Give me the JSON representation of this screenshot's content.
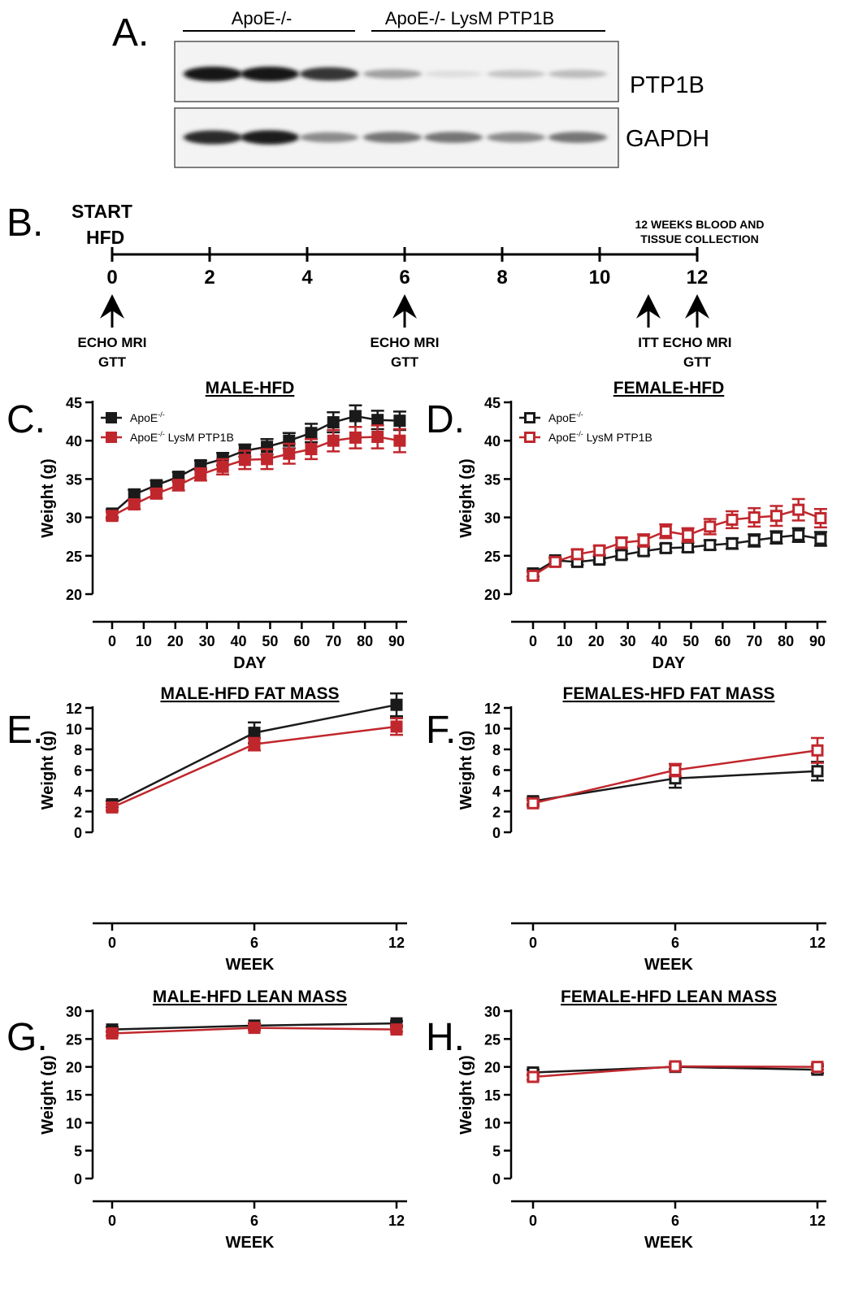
{
  "panels": {
    "a": "A.",
    "b": "B.",
    "c": "C.",
    "d": "D.",
    "e": "E.",
    "f": "F.",
    "g": "G.",
    "h": "H."
  },
  "blot": {
    "group1": "ApoE-/-",
    "group2": "ApoE-/- LysM PTP1B",
    "band1": "PTP1B",
    "band2": "GAPDH",
    "ptp1b_intensity": [
      1.0,
      1.0,
      0.85,
      0.35,
      0.06,
      0.18,
      0.22
    ],
    "gapdh_intensity": [
      0.9,
      0.95,
      0.45,
      0.55,
      0.55,
      0.45,
      0.55
    ]
  },
  "timeline": {
    "start_line1": "START",
    "start_line2": "HFD",
    "end_line1": "12 WEEKS BLOOD AND",
    "end_line2": "TISSUE COLLECTION",
    "ticks": [
      "0",
      "2",
      "4",
      "6",
      "8",
      "10",
      "12"
    ],
    "events": [
      {
        "week": 0,
        "line1": "ECHO MRI",
        "line2": "GTT"
      },
      {
        "week": 6,
        "line1": "ECHO MRI",
        "line2": "GTT"
      },
      {
        "week": 11,
        "line1": "ITT",
        "line2": ""
      },
      {
        "week": 12,
        "line1": "ECHO MRI",
        "line2": "GTT"
      }
    ]
  },
  "colors": {
    "apoe": "#1a1a1a",
    "ptp1b": "#c0272d"
  },
  "legend": {
    "apoe_base": "ApoE",
    "apoe_sup": "-/-",
    "ptp1b_base": "ApoE",
    "ptp1b_sup": "-/-",
    "ptp1b_tail": " LysM PTP1B"
  },
  "chart_data": [
    {
      "id": "c",
      "type": "line",
      "title": "MALE-HFD",
      "xlabel": "DAY",
      "ylabel": "Weight (g)",
      "ylim": [
        20,
        45
      ],
      "xlim": [
        0,
        90
      ],
      "yticks": [
        20,
        25,
        30,
        35,
        40,
        45
      ],
      "xticks": [
        0,
        10,
        20,
        30,
        40,
        50,
        60,
        70,
        80,
        90
      ],
      "filled": true,
      "legend": "top-left",
      "series": [
        {
          "name": "ApoE-/-",
          "color": "#1a1a1a",
          "x": [
            0,
            7,
            14,
            21,
            28,
            35,
            42,
            49,
            56,
            63,
            70,
            77,
            84,
            91
          ],
          "y": [
            30.5,
            33.0,
            34.2,
            35.3,
            36.8,
            37.6,
            38.7,
            39.2,
            40.0,
            41.0,
            42.4,
            43.2,
            42.7,
            42.6
          ],
          "err": [
            0.5,
            0.6,
            0.6,
            0.6,
            0.6,
            0.8,
            0.8,
            1.0,
            1.0,
            1.2,
            1.3,
            1.4,
            1.2,
            1.2
          ]
        },
        {
          "name": "ApoE-/- LysM PTP1B",
          "color": "#c0272d",
          "x": [
            0,
            7,
            14,
            21,
            28,
            35,
            42,
            49,
            56,
            63,
            70,
            77,
            84,
            91
          ],
          "y": [
            30.2,
            31.7,
            33.1,
            34.2,
            35.6,
            36.6,
            37.5,
            37.6,
            38.3,
            38.9,
            40.0,
            40.4,
            40.5,
            40.0
          ],
          "err": [
            0.5,
            0.6,
            0.6,
            0.7,
            0.8,
            1.0,
            1.2,
            1.3,
            1.3,
            1.3,
            1.4,
            1.4,
            1.5,
            1.5
          ]
        }
      ]
    },
    {
      "id": "d",
      "type": "line",
      "title": "FEMALE-HFD",
      "xlabel": "DAY",
      "ylabel": "Weight (g)",
      "ylim": [
        20,
        45
      ],
      "xlim": [
        0,
        90
      ],
      "yticks": [
        20,
        25,
        30,
        35,
        40,
        45
      ],
      "xticks": [
        0,
        10,
        20,
        30,
        40,
        50,
        60,
        70,
        80,
        90
      ],
      "filled": false,
      "legend": "top-left",
      "series": [
        {
          "name": "ApoE-/-",
          "color": "#1a1a1a",
          "x": [
            0,
            7,
            14,
            21,
            28,
            35,
            42,
            49,
            56,
            63,
            70,
            77,
            84,
            91
          ],
          "y": [
            22.7,
            24.4,
            24.2,
            24.5,
            25.1,
            25.6,
            26.0,
            26.1,
            26.4,
            26.6,
            27.0,
            27.4,
            27.7,
            27.2
          ],
          "err": [
            0.4,
            0.4,
            0.4,
            0.4,
            0.5,
            0.5,
            0.5,
            0.6,
            0.6,
            0.7,
            0.8,
            0.8,
            0.9,
            0.9
          ]
        },
        {
          "name": "ApoE-/- LysM PTP1B",
          "color": "#c0272d",
          "x": [
            0,
            7,
            14,
            21,
            28,
            35,
            42,
            49,
            56,
            63,
            70,
            77,
            84,
            91
          ],
          "y": [
            22.4,
            24.2,
            25.2,
            25.7,
            26.7,
            27.0,
            28.2,
            27.7,
            28.8,
            29.7,
            30.0,
            30.2,
            31.0,
            29.9
          ],
          "err": [
            0.5,
            0.5,
            0.6,
            0.6,
            0.7,
            0.8,
            0.9,
            0.9,
            1.0,
            1.1,
            1.2,
            1.3,
            1.4,
            1.2
          ]
        }
      ]
    },
    {
      "id": "e",
      "type": "line",
      "title": "MALE-HFD FAT MASS",
      "xlabel": "WEEK",
      "ylabel": "Weight (g)",
      "ylim": [
        0,
        13.5
      ],
      "xlim": [
        0,
        12
      ],
      "yticks": [
        0,
        2,
        4,
        6,
        8,
        10,
        12
      ],
      "xticks": [
        0,
        6,
        12
      ],
      "filled": true,
      "series": [
        {
          "name": "ApoE-/-",
          "color": "#1a1a1a",
          "x": [
            0,
            6,
            12
          ],
          "y": [
            2.7,
            9.6,
            12.3
          ],
          "err": [
            0.3,
            1.0,
            1.1
          ]
        },
        {
          "name": "ApoE-/- LysM PTP1B",
          "color": "#c0272d",
          "x": [
            0,
            6,
            12
          ],
          "y": [
            2.4,
            8.5,
            10.2
          ],
          "err": [
            0.3,
            0.6,
            0.8
          ]
        }
      ]
    },
    {
      "id": "f",
      "type": "line",
      "title": "FEMALES-HFD FAT MASS",
      "xlabel": "WEEK",
      "ylabel": "Weight (g)",
      "ylim": [
        0,
        13.5
      ],
      "xlim": [
        0,
        12
      ],
      "yticks": [
        0,
        2,
        4,
        6,
        8,
        10,
        12
      ],
      "xticks": [
        0,
        6,
        12
      ],
      "filled": false,
      "series": [
        {
          "name": "ApoE-/-",
          "color": "#1a1a1a",
          "x": [
            0,
            6,
            12
          ],
          "y": [
            3.0,
            5.2,
            5.9
          ],
          "err": [
            0.3,
            0.9,
            0.9
          ]
        },
        {
          "name": "ApoE-/- LysM PTP1B",
          "color": "#c0272d",
          "x": [
            0,
            6,
            12
          ],
          "y": [
            2.8,
            6.0,
            7.9
          ],
          "err": [
            0.3,
            0.6,
            1.2
          ]
        }
      ]
    },
    {
      "id": "g",
      "type": "line",
      "title": "MALE-HFD LEAN MASS",
      "xlabel": "WEEK",
      "ylabel": "Weight (g)",
      "ylim": [
        0,
        30
      ],
      "xlim": [
        0,
        12
      ],
      "yticks": [
        0,
        5,
        10,
        15,
        20,
        25,
        30
      ],
      "xticks": [
        0,
        6,
        12
      ],
      "filled": true,
      "series": [
        {
          "name": "ApoE-/-",
          "color": "#1a1a1a",
          "x": [
            0,
            6,
            12
          ],
          "y": [
            26.7,
            27.4,
            27.8
          ],
          "err": [
            0.4,
            0.4,
            0.4
          ]
        },
        {
          "name": "ApoE-/- LysM PTP1B",
          "color": "#c0272d",
          "x": [
            0,
            6,
            12
          ],
          "y": [
            26.0,
            27.0,
            26.7
          ],
          "err": [
            0.4,
            0.4,
            0.4
          ]
        }
      ]
    },
    {
      "id": "h",
      "type": "line",
      "title": "FEMALE-HFD LEAN MASS",
      "xlabel": "WEEK",
      "ylabel": "Weight (g)",
      "ylim": [
        0,
        30
      ],
      "xlim": [
        0,
        12
      ],
      "yticks": [
        0,
        5,
        10,
        15,
        20,
        25,
        30
      ],
      "xticks": [
        0,
        6,
        12
      ],
      "filled": false,
      "series": [
        {
          "name": "ApoE-/-",
          "color": "#1a1a1a",
          "x": [
            0,
            6,
            12
          ],
          "y": [
            19.0,
            20.0,
            19.5
          ],
          "err": [
            0.5,
            0.5,
            0.6
          ]
        },
        {
          "name": "ApoE-/- LysM PTP1B",
          "color": "#c0272d",
          "x": [
            0,
            6,
            12
          ],
          "y": [
            18.2,
            20.1,
            20.0
          ],
          "err": [
            0.5,
            0.5,
            0.5
          ]
        }
      ]
    }
  ]
}
